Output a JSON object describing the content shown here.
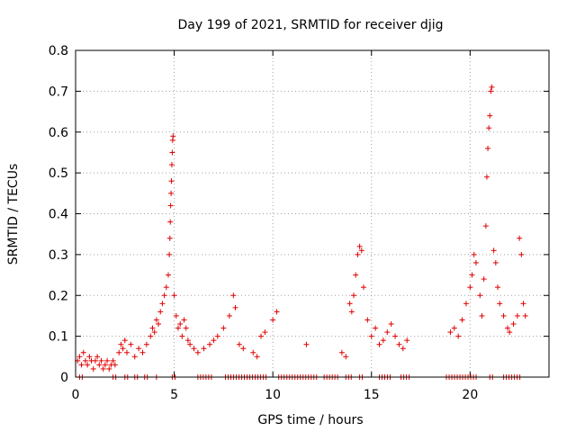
{
  "chart_data": {
    "type": "scatter",
    "title": "Day 199 of 2021, SRMTID for receiver djig",
    "xlabel": "GPS time / hours",
    "ylabel": "SRMTID / TECUs",
    "xlim": [
      0,
      24
    ],
    "ylim": [
      0,
      0.8
    ],
    "xticks": [
      "0",
      "5",
      "10",
      "15",
      "20"
    ],
    "yticks": [
      "0",
      "0.1",
      "0.2",
      "0.3",
      "0.4",
      "0.5",
      "0.6",
      "0.7",
      "0.8"
    ],
    "grid": true,
    "marker": "+",
    "color": "#e00000",
    "series": [
      {
        "name": "SRMTID",
        "points": [
          [
            0.1,
            0.04
          ],
          [
            0.2,
            0.05
          ],
          [
            0.3,
            0.03
          ],
          [
            0.4,
            0.06
          ],
          [
            0.5,
            0.04
          ],
          [
            0.6,
            0.03
          ],
          [
            0.7,
            0.05
          ],
          [
            0.8,
            0.04
          ],
          [
            0.9,
            0.02
          ],
          [
            1.0,
            0.04
          ],
          [
            1.1,
            0.05
          ],
          [
            1.2,
            0.03
          ],
          [
            1.3,
            0.04
          ],
          [
            1.4,
            0.02
          ],
          [
            1.5,
            0.03
          ],
          [
            1.6,
            0.04
          ],
          [
            1.7,
            0.02
          ],
          [
            1.8,
            0.03
          ],
          [
            1.9,
            0.04
          ],
          [
            2.0,
            0.03
          ],
          [
            2.2,
            0.06
          ],
          [
            2.3,
            0.08
          ],
          [
            2.4,
            0.07
          ],
          [
            2.5,
            0.09
          ],
          [
            2.6,
            0.06
          ],
          [
            2.8,
            0.08
          ],
          [
            3.0,
            0.05
          ],
          [
            3.2,
            0.07
          ],
          [
            3.4,
            0.06
          ],
          [
            3.6,
            0.08
          ],
          [
            3.8,
            0.1
          ],
          [
            3.9,
            0.12
          ],
          [
            4.0,
            0.11
          ],
          [
            4.1,
            0.14
          ],
          [
            4.2,
            0.13
          ],
          [
            4.3,
            0.16
          ],
          [
            4.4,
            0.18
          ],
          [
            4.5,
            0.2
          ],
          [
            4.6,
            0.22
          ],
          [
            4.7,
            0.25
          ],
          [
            4.75,
            0.3
          ],
          [
            4.78,
            0.34
          ],
          [
            4.8,
            0.38
          ],
          [
            4.82,
            0.42
          ],
          [
            4.84,
            0.45
          ],
          [
            4.86,
            0.48
          ],
          [
            4.88,
            0.52
          ],
          [
            4.9,
            0.55
          ],
          [
            4.92,
            0.58
          ],
          [
            4.94,
            0.59
          ],
          [
            5.0,
            0.2
          ],
          [
            5.1,
            0.15
          ],
          [
            5.2,
            0.12
          ],
          [
            5.3,
            0.13
          ],
          [
            5.4,
            0.1
          ],
          [
            5.5,
            0.14
          ],
          [
            5.6,
            0.12
          ],
          [
            5.7,
            0.09
          ],
          [
            5.8,
            0.08
          ],
          [
            6.0,
            0.07
          ],
          [
            6.2,
            0.06
          ],
          [
            6.5,
            0.07
          ],
          [
            6.8,
            0.08
          ],
          [
            7.0,
            0.09
          ],
          [
            7.2,
            0.1
          ],
          [
            7.5,
            0.12
          ],
          [
            7.8,
            0.15
          ],
          [
            8.0,
            0.2
          ],
          [
            8.1,
            0.17
          ],
          [
            8.3,
            0.08
          ],
          [
            8.5,
            0.07
          ],
          [
            9.0,
            0.06
          ],
          [
            9.2,
            0.05
          ],
          [
            9.4,
            0.1
          ],
          [
            9.6,
            0.11
          ],
          [
            10.0,
            0.14
          ],
          [
            10.2,
            0.16
          ],
          [
            11.7,
            0.08
          ],
          [
            13.5,
            0.06
          ],
          [
            13.7,
            0.05
          ],
          [
            13.9,
            0.18
          ],
          [
            14.0,
            0.16
          ],
          [
            14.1,
            0.2
          ],
          [
            14.2,
            0.25
          ],
          [
            14.3,
            0.3
          ],
          [
            14.4,
            0.32
          ],
          [
            14.5,
            0.31
          ],
          [
            14.6,
            0.22
          ],
          [
            14.8,
            0.14
          ],
          [
            15.0,
            0.1
          ],
          [
            15.2,
            0.12
          ],
          [
            15.4,
            0.08
          ],
          [
            15.6,
            0.09
          ],
          [
            15.8,
            0.11
          ],
          [
            16.0,
            0.13
          ],
          [
            16.2,
            0.1
          ],
          [
            16.4,
            0.08
          ],
          [
            16.6,
            0.07
          ],
          [
            16.8,
            0.09
          ],
          [
            19.0,
            0.11
          ],
          [
            19.2,
            0.12
          ],
          [
            19.4,
            0.1
          ],
          [
            19.6,
            0.14
          ],
          [
            19.8,
            0.18
          ],
          [
            20.0,
            0.22
          ],
          [
            20.1,
            0.25
          ],
          [
            20.2,
            0.3
          ],
          [
            20.3,
            0.28
          ],
          [
            20.5,
            0.2
          ],
          [
            20.6,
            0.15
          ],
          [
            20.7,
            0.24
          ],
          [
            20.8,
            0.37
          ],
          [
            20.85,
            0.49
          ],
          [
            20.9,
            0.56
          ],
          [
            20.95,
            0.61
          ],
          [
            21.0,
            0.64
          ],
          [
            21.05,
            0.7
          ],
          [
            21.1,
            0.71
          ],
          [
            21.2,
            0.31
          ],
          [
            21.3,
            0.28
          ],
          [
            21.4,
            0.22
          ],
          [
            21.5,
            0.18
          ],
          [
            21.7,
            0.15
          ],
          [
            21.9,
            0.12
          ],
          [
            22.0,
            0.11
          ],
          [
            22.2,
            0.13
          ],
          [
            22.4,
            0.15
          ],
          [
            22.5,
            0.34
          ],
          [
            22.6,
            0.3
          ],
          [
            22.7,
            0.18
          ],
          [
            22.8,
            0.15
          ]
        ]
      }
    ],
    "zero_intervals": [
      [
        0.2,
        0.4
      ],
      [
        1.9,
        2.1
      ],
      [
        2.5,
        2.7
      ],
      [
        3.0,
        3.2
      ],
      [
        3.5,
        3.7
      ],
      [
        4.1,
        4.2
      ],
      [
        4.9,
        5.1
      ],
      [
        6.2,
        7.0
      ],
      [
        7.6,
        9.7
      ],
      [
        10.3,
        12.3
      ],
      [
        12.6,
        13.4
      ],
      [
        13.7,
        14.1
      ],
      [
        14.4,
        14.6
      ],
      [
        15.4,
        16.0
      ],
      [
        16.5,
        17.0
      ],
      [
        18.8,
        20.4
      ],
      [
        21.0,
        21.2
      ],
      [
        21.7,
        22.6
      ]
    ]
  }
}
